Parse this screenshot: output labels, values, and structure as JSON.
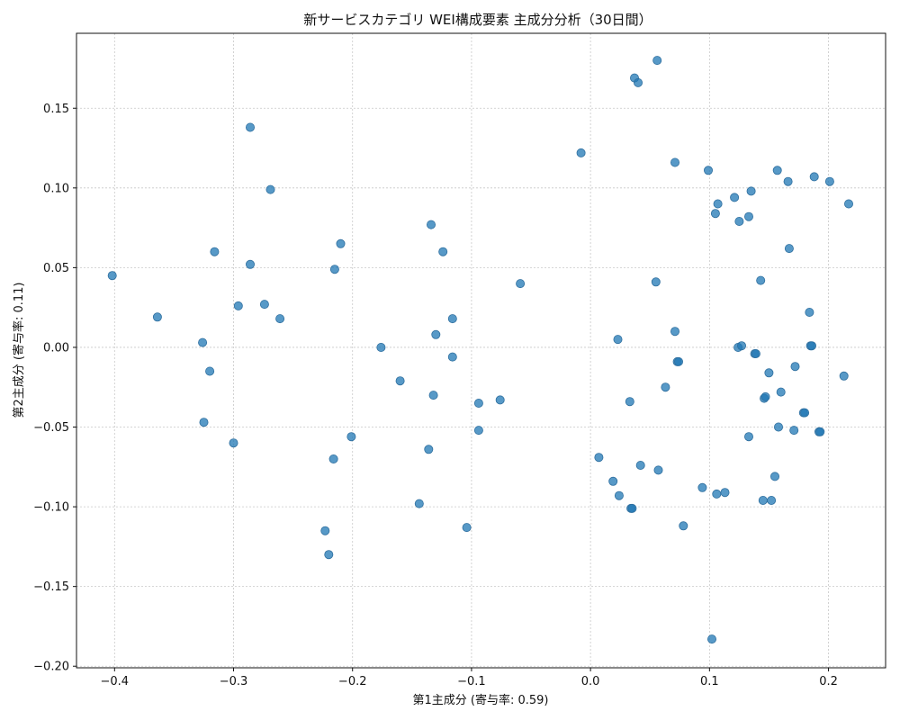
{
  "chart_data": {
    "type": "scatter",
    "title": "新サービスカテゴリ WEI構成要素 主成分分析（30日間）",
    "xlabel": "第1主成分 (寄与率: 0.59)",
    "ylabel": "第2主成分 (寄与率: 0.11)",
    "xlim": [
      -0.432,
      0.248
    ],
    "ylim": [
      -0.201,
      0.197
    ],
    "xticks": [
      -0.4,
      -0.3,
      -0.2,
      -0.1,
      0.0,
      0.1,
      0.2
    ],
    "xtick_labels": [
      "−0.4",
      "−0.3",
      "−0.2",
      "−0.1",
      "0.0",
      "0.1",
      "0.2"
    ],
    "yticks": [
      -0.2,
      -0.15,
      -0.1,
      -0.05,
      0.0,
      0.05,
      0.1,
      0.15
    ],
    "ytick_labels": [
      "−0.20",
      "−0.15",
      "−0.10",
      "−0.05",
      "0.00",
      "0.05",
      "0.10",
      "0.15"
    ],
    "grid": true,
    "color": "#1f77b4",
    "opacity": 0.75,
    "points": [
      [
        -0.402,
        0.045
      ],
      [
        -0.364,
        0.019
      ],
      [
        -0.326,
        0.003
      ],
      [
        -0.32,
        -0.015
      ],
      [
        -0.325,
        -0.047
      ],
      [
        -0.316,
        0.06
      ],
      [
        -0.3,
        -0.06
      ],
      [
        -0.296,
        0.026
      ],
      [
        -0.286,
        0.138
      ],
      [
        -0.286,
        0.052
      ],
      [
        -0.274,
        0.027
      ],
      [
        -0.269,
        0.099
      ],
      [
        -0.261,
        0.018
      ],
      [
        -0.223,
        -0.115
      ],
      [
        -0.22,
        -0.13
      ],
      [
        -0.216,
        -0.07
      ],
      [
        -0.215,
        0.049
      ],
      [
        -0.21,
        0.065
      ],
      [
        -0.201,
        -0.056
      ],
      [
        -0.176,
        0.0
      ],
      [
        -0.16,
        -0.021
      ],
      [
        -0.144,
        -0.098
      ],
      [
        -0.136,
        -0.064
      ],
      [
        -0.134,
        0.077
      ],
      [
        -0.132,
        -0.03
      ],
      [
        -0.13,
        0.008
      ],
      [
        -0.124,
        0.06
      ],
      [
        -0.116,
        0.018
      ],
      [
        -0.116,
        -0.006
      ],
      [
        -0.104,
        -0.113
      ],
      [
        -0.094,
        -0.035
      ],
      [
        -0.094,
        -0.052
      ],
      [
        -0.076,
        -0.033
      ],
      [
        -0.059,
        0.04
      ],
      [
        -0.008,
        0.122
      ],
      [
        0.007,
        -0.069
      ],
      [
        0.019,
        -0.084
      ],
      [
        0.023,
        0.005
      ],
      [
        0.024,
        -0.093
      ],
      [
        0.033,
        -0.034
      ],
      [
        0.034,
        -0.101
      ],
      [
        0.035,
        -0.101
      ],
      [
        0.037,
        0.169
      ],
      [
        0.04,
        0.166
      ],
      [
        0.042,
        -0.074
      ],
      [
        0.055,
        0.041
      ],
      [
        0.056,
        0.18
      ],
      [
        0.057,
        -0.077
      ],
      [
        0.063,
        -0.025
      ],
      [
        0.071,
        0.01
      ],
      [
        0.071,
        0.116
      ],
      [
        0.073,
        -0.009
      ],
      [
        0.074,
        -0.009
      ],
      [
        0.078,
        -0.112
      ],
      [
        0.094,
        -0.088
      ],
      [
        0.099,
        0.111
      ],
      [
        0.102,
        -0.183
      ],
      [
        0.105,
        0.084
      ],
      [
        0.106,
        -0.092
      ],
      [
        0.107,
        0.09
      ],
      [
        0.113,
        -0.091
      ],
      [
        0.121,
        0.094
      ],
      [
        0.124,
        0.0
      ],
      [
        0.125,
        0.079
      ],
      [
        0.127,
        0.001
      ],
      [
        0.133,
        0.082
      ],
      [
        0.133,
        -0.056
      ],
      [
        0.135,
        0.098
      ],
      [
        0.138,
        -0.004
      ],
      [
        0.139,
        -0.004
      ],
      [
        0.143,
        0.042
      ],
      [
        0.145,
        -0.096
      ],
      [
        0.146,
        -0.032
      ],
      [
        0.147,
        -0.031
      ],
      [
        0.15,
        -0.016
      ],
      [
        0.152,
        -0.096
      ],
      [
        0.155,
        -0.081
      ],
      [
        0.157,
        0.111
      ],
      [
        0.158,
        -0.05
      ],
      [
        0.16,
        -0.028
      ],
      [
        0.166,
        0.104
      ],
      [
        0.167,
        0.062
      ],
      [
        0.171,
        -0.052
      ],
      [
        0.172,
        -0.012
      ],
      [
        0.179,
        -0.041
      ],
      [
        0.18,
        -0.041
      ],
      [
        0.184,
        0.022
      ],
      [
        0.185,
        0.001
      ],
      [
        0.186,
        0.001
      ],
      [
        0.188,
        0.107
      ],
      [
        0.192,
        -0.053
      ],
      [
        0.193,
        -0.053
      ],
      [
        0.201,
        0.104
      ],
      [
        0.213,
        -0.018
      ],
      [
        0.217,
        0.09
      ]
    ]
  }
}
